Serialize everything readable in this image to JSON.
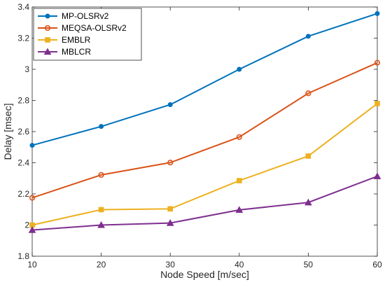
{
  "chart_data": {
    "type": "line",
    "title": "",
    "xlabel": "Node Speed [m/sec]",
    "ylabel": "Delay [msec]",
    "x": [
      10,
      20,
      30,
      40,
      50,
      60
    ],
    "xlim": [
      10,
      60
    ],
    "ylim": [
      1.8,
      3.4
    ],
    "xticks": [
      "10",
      "20",
      "30",
      "40",
      "50",
      "60"
    ],
    "yticks": [
      "1.8",
      "2",
      "2.2",
      "2.4",
      "2.6",
      "2.8",
      "3",
      "3.2",
      "3.4"
    ],
    "grid": false,
    "legend_position": "top-left",
    "series": [
      {
        "name": "MP-OLSRv2",
        "values": [
          2.512,
          2.633,
          2.773,
          3.0,
          3.212,
          3.358
        ],
        "color": "#0072BD",
        "marker": "dot"
      },
      {
        "name": "MEQSA-OLSRv2",
        "values": [
          2.175,
          2.322,
          2.401,
          2.565,
          2.846,
          3.042
        ],
        "color": "#D95319",
        "marker": "circle"
      },
      {
        "name": "EMBLR",
        "values": [
          2.0,
          2.099,
          2.104,
          2.285,
          2.443,
          2.78
        ],
        "color": "#EDB120",
        "marker": "square"
      },
      {
        "name": "MBLCR",
        "values": [
          1.968,
          2.0,
          2.013,
          2.097,
          2.145,
          2.313
        ],
        "color": "#7E2F8E",
        "marker": "triangle"
      }
    ]
  }
}
